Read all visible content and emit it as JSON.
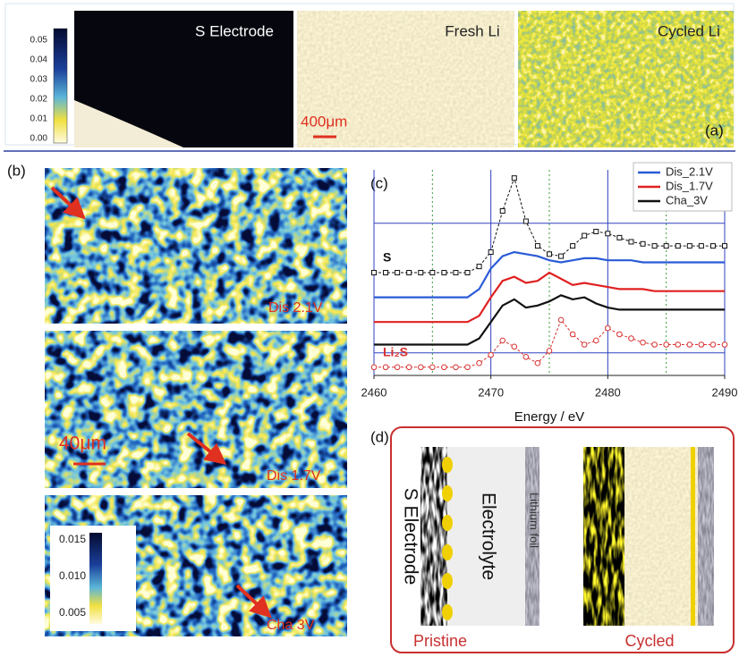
{
  "panel_a": {
    "label": "(a)",
    "colorbar_ticks": [
      "0.05",
      "0.04",
      "0.03",
      "0.02",
      "0.01",
      "0.00"
    ],
    "maps": [
      "S Electrode",
      "Fresh Li",
      "Cycled Li"
    ],
    "scale_bar": "400μm"
  },
  "panel_b": {
    "label": "(b)",
    "maps": [
      "Dis 2.1V",
      "Dis 1.7V",
      "Cha 3V"
    ],
    "scale_bar": "40μm",
    "colorbar_ticks": [
      "0.015",
      "0.010",
      "0.005"
    ]
  },
  "chart_data": {
    "type": "line",
    "label": "(c)",
    "x_label": "Energy / eV",
    "x": [
      2460,
      2461,
      2462,
      2463,
      2464,
      2465,
      2466,
      2467,
      2468,
      2469,
      2470,
      2471,
      2472,
      2473,
      2474,
      2475,
      2476,
      2477,
      2478,
      2479,
      2480,
      2481,
      2482,
      2483,
      2484,
      2485,
      2486,
      2487,
      2488,
      2489,
      2490
    ],
    "xlim": [
      2460,
      2490
    ],
    "xticks": [
      2460,
      2470,
      2480,
      2490
    ],
    "ylim": [
      0,
      10
    ],
    "grid": true,
    "dotted_vlines": [
      2465,
      2475,
      2485
    ],
    "hlines": [
      7.4,
      1.1
    ],
    "legend": "upper right",
    "series": [
      {
        "name": "S",
        "color": "#111111",
        "marker": "square",
        "in_legend": false,
        "values": [
          5,
          5,
          5,
          5,
          5,
          5,
          5,
          5,
          5,
          5.3,
          6.0,
          8.0,
          9.6,
          7.5,
          6.3,
          5.9,
          5.8,
          6.3,
          6.8,
          7.0,
          6.9,
          6.7,
          6.5,
          6.4,
          6.3,
          6.3,
          6.3,
          6.3,
          6.3,
          6.3,
          6.3
        ]
      },
      {
        "name": "Dis_2.1V",
        "color": "#2a5bd7",
        "marker": "none",
        "in_legend": true,
        "values": [
          3.8,
          3.8,
          3.8,
          3.8,
          3.8,
          3.8,
          3.8,
          3.8,
          3.8,
          4.2,
          5.2,
          5.8,
          6.0,
          5.9,
          5.8,
          5.6,
          5.5,
          5.6,
          5.7,
          5.7,
          5.6,
          5.6,
          5.6,
          5.5,
          5.5,
          5.5,
          5.5,
          5.5,
          5.5,
          5.5,
          5.5
        ]
      },
      {
        "name": "Dis_1.7V",
        "color": "#e02020",
        "marker": "none",
        "in_legend": true,
        "values": [
          2.6,
          2.6,
          2.6,
          2.6,
          2.6,
          2.6,
          2.6,
          2.6,
          2.6,
          2.9,
          3.8,
          4.6,
          4.8,
          4.5,
          4.6,
          5.0,
          4.7,
          4.4,
          4.5,
          4.4,
          4.3,
          4.2,
          4.2,
          4.2,
          4.1,
          4.1,
          4.1,
          4.1,
          4.1,
          4.1,
          4.1
        ]
      },
      {
        "name": "Cha_3V",
        "color": "#111111",
        "marker": "none",
        "in_legend": true,
        "values": [
          1.5,
          1.5,
          1.5,
          1.5,
          1.5,
          1.5,
          1.5,
          1.5,
          1.5,
          1.8,
          2.6,
          3.4,
          3.7,
          3.3,
          3.4,
          3.6,
          3.9,
          3.7,
          3.8,
          3.5,
          3.3,
          3.2,
          3.2,
          3.2,
          3.2,
          3.2,
          3.2,
          3.2,
          3.2,
          3.2,
          3.2
        ]
      },
      {
        "name": "Li₂S",
        "color": "#d83030",
        "marker": "circle",
        "in_legend": false,
        "values": [
          0.4,
          0.4,
          0.4,
          0.4,
          0.4,
          0.4,
          0.4,
          0.4,
          0.4,
          0.6,
          1.0,
          1.7,
          1.4,
          0.9,
          0.6,
          1.2,
          2.7,
          2.0,
          1.5,
          1.7,
          2.3,
          2.0,
          1.8,
          1.6,
          1.5,
          1.5,
          1.5,
          1.5,
          1.5,
          1.5,
          1.5
        ]
      }
    ]
  },
  "panel_d": {
    "label": "(d)",
    "s_electrode": "S Electrode",
    "electrolyte": "Electrolyte",
    "lithium_foil": "Lithium foil",
    "pristine": "Pristine",
    "cycled": "Cycled"
  }
}
